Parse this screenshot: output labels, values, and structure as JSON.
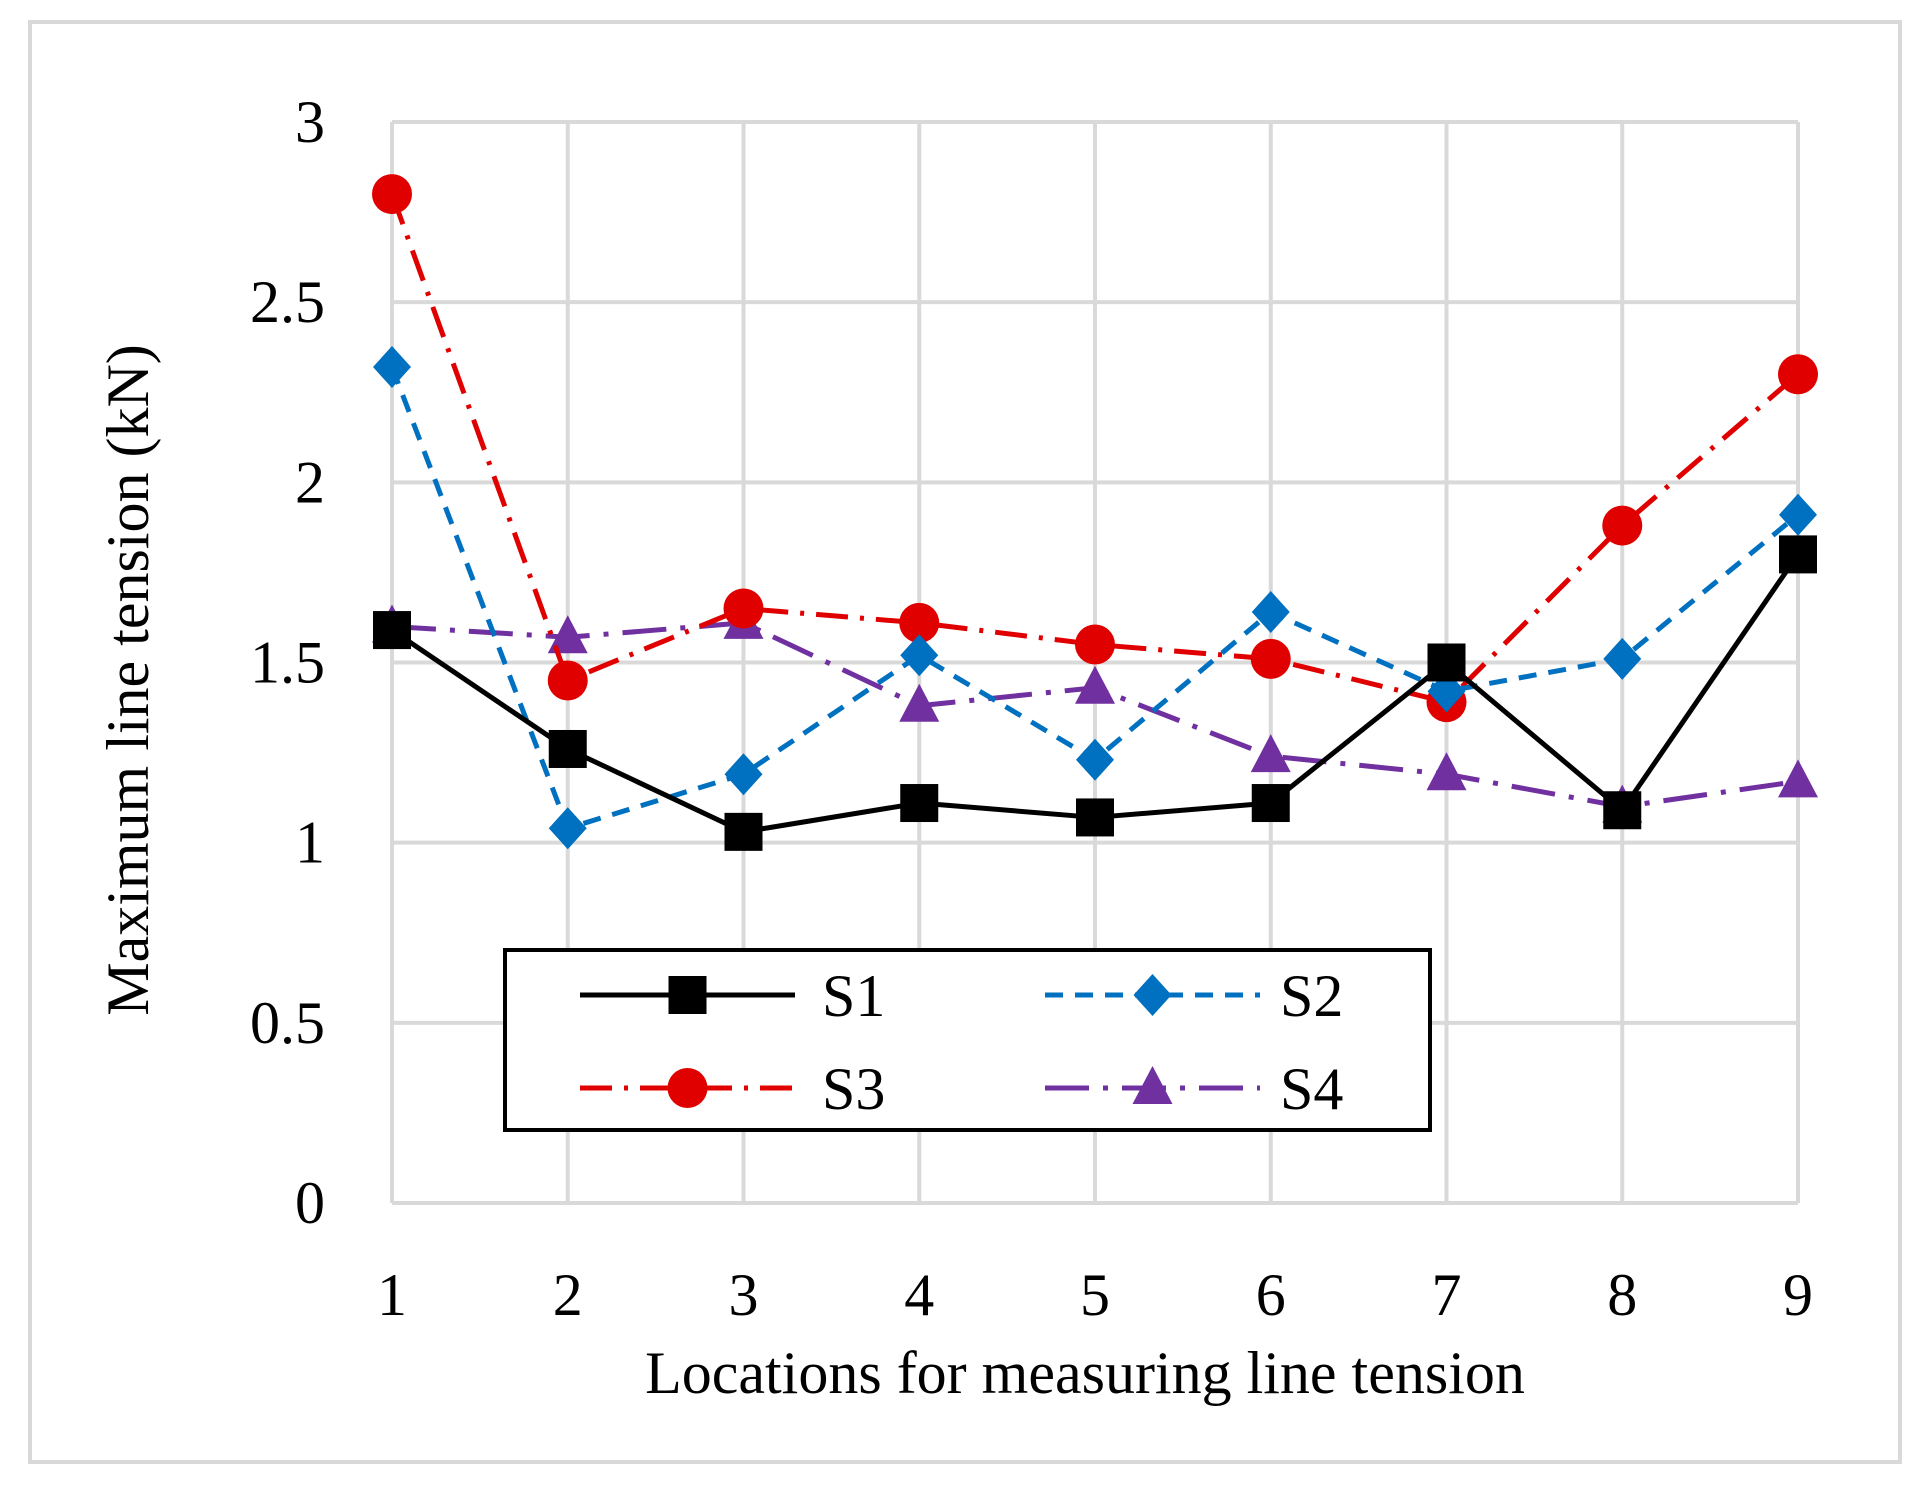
{
  "chart_data": {
    "type": "line",
    "title": "",
    "xlabel": "Locations for measuring line tension",
    "ylabel": "Maximum line tension (kN)",
    "categories": [
      "1",
      "2",
      "3",
      "4",
      "5",
      "6",
      "7",
      "8",
      "9"
    ],
    "x": [
      1,
      2,
      3,
      4,
      5,
      6,
      7,
      8,
      9
    ],
    "ylim": [
      0,
      3
    ],
    "yticks": [
      0,
      0.5,
      1,
      1.5,
      2,
      2.5,
      3
    ],
    "ytick_labels": [
      "0",
      "0.5",
      "1",
      "1.5",
      "2",
      "2.5",
      "3"
    ],
    "grid": true,
    "legend_position": "lower-center",
    "series": [
      {
        "name": "S1",
        "color": "#000000",
        "marker": "square",
        "dash": "solid",
        "values": [
          1.59,
          1.26,
          1.03,
          1.11,
          1.07,
          1.11,
          1.5,
          1.09,
          1.8
        ]
      },
      {
        "name": "S2",
        "color": "#0070C0",
        "marker": "diamond",
        "dash": "dashed",
        "values": [
          2.32,
          1.04,
          1.19,
          1.52,
          1.23,
          1.64,
          1.42,
          1.51,
          1.91
        ]
      },
      {
        "name": "S3",
        "color": "#E00000",
        "marker": "circle",
        "dash": "dashdot",
        "values": [
          2.8,
          1.45,
          1.65,
          1.61,
          1.55,
          1.51,
          1.39,
          1.88,
          2.3
        ]
      },
      {
        "name": "S4",
        "color": "#7030A0",
        "marker": "triangle",
        "dash": "longdashdot",
        "values": [
          1.6,
          1.57,
          1.61,
          1.38,
          1.43,
          1.24,
          1.19,
          1.1,
          1.17
        ]
      }
    ]
  }
}
